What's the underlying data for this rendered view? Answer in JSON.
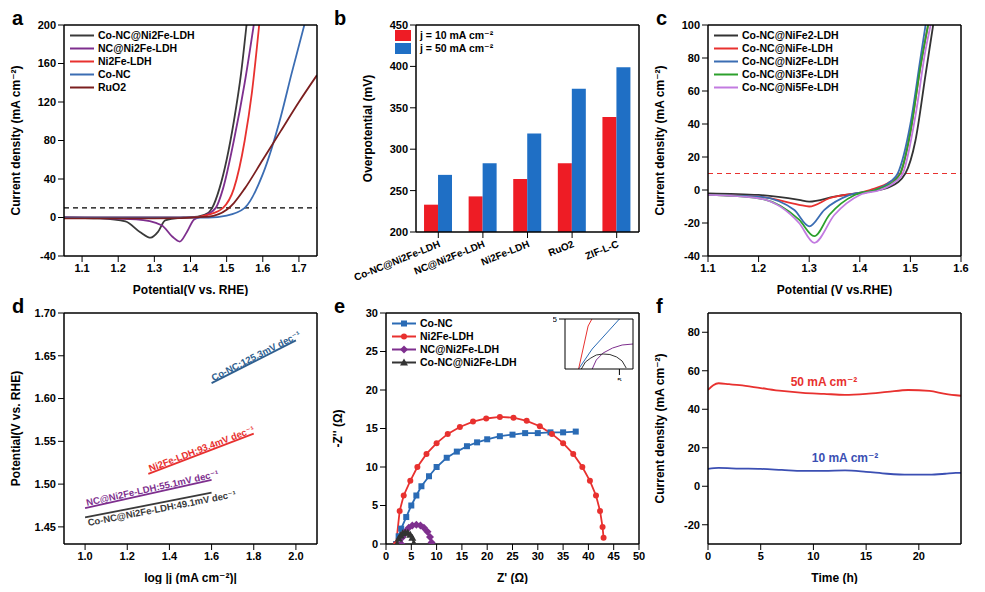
{
  "chart_data": [
    {
      "panel": "a",
      "type": "line",
      "x_label": "Potential(V vs. RHE)",
      "y_label": "Current density (mA cm⁻²)",
      "xlim": [
        1.05,
        1.75
      ],
      "xticks": [
        1.1,
        1.2,
        1.3,
        1.4,
        1.5,
        1.6,
        1.7
      ],
      "ylim": [
        -40,
        200
      ],
      "yticks": [
        -40,
        0,
        40,
        80,
        120,
        160,
        200
      ],
      "hline": 10,
      "legend": "upper left",
      "grid": false,
      "series": [
        {
          "name": "Co-NC@Ni2Fe-LDH",
          "color": "#3a3a3a",
          "x": [
            1.05,
            1.15,
            1.22,
            1.26,
            1.29,
            1.31,
            1.33,
            1.38,
            1.42,
            1.45,
            1.46,
            1.48,
            1.5,
            1.52,
            1.54,
            1.555
          ],
          "values": [
            0,
            -1,
            -4,
            -15,
            -21,
            -15,
            -3,
            0,
            1,
            5,
            10,
            30,
            60,
            100,
            150,
            200
          ]
        },
        {
          "name": "NC@Ni2Fe-LDH",
          "color": "#7e2f8e",
          "x": [
            1.05,
            1.25,
            1.32,
            1.35,
            1.37,
            1.39,
            1.41,
            1.44,
            1.47,
            1.49,
            1.52,
            1.55,
            1.575
          ],
          "values": [
            0,
            -2,
            -8,
            -20,
            -25,
            -15,
            -2,
            2,
            10,
            30,
            80,
            140,
            200
          ]
        },
        {
          "name": "Ni2Fe-LDH",
          "color": "#e8312f",
          "x": [
            1.05,
            1.3,
            1.4,
            1.45,
            1.49,
            1.52,
            1.55,
            1.57,
            1.59
          ],
          "values": [
            0,
            0,
            0,
            3,
            10,
            30,
            80,
            130,
            200
          ]
        },
        {
          "name": "Co-NC",
          "color": "#3b6db3",
          "x": [
            1.05,
            1.3,
            1.45,
            1.5,
            1.55,
            1.6,
            1.65,
            1.68,
            1.715
          ],
          "values": [
            0,
            0,
            0,
            2,
            10,
            45,
            105,
            150,
            200
          ]
        },
        {
          "name": "RuO2",
          "color": "#7b1f1f",
          "x": [
            1.05,
            1.3,
            1.45,
            1.5,
            1.52,
            1.55,
            1.6,
            1.65,
            1.7,
            1.75
          ],
          "values": [
            -1,
            -1,
            1,
            8,
            15,
            30,
            60,
            90,
            120,
            148
          ]
        }
      ]
    },
    {
      "panel": "b",
      "type": "bar",
      "y_label": "Overpotential (mV)",
      "categories": [
        "Co-NC@Ni2Fe-LDH",
        "NC@Ni2Fe-LDH",
        "Ni2Fe-LDH",
        "RuO2",
        "ZIF-L-C"
      ],
      "ylim": [
        200,
        450
      ],
      "yticks": [
        200,
        250,
        300,
        350,
        400,
        450
      ],
      "legend": "upper left",
      "grid": false,
      "series": [
        {
          "name": "j = 10 mA cm⁻²",
          "color": "#ee1c25",
          "values": [
            233,
            243,
            264,
            283,
            339
          ]
        },
        {
          "name": "j = 50 mA cm⁻²",
          "color": "#1f6fc5",
          "values": [
            269,
            283,
            319,
            373,
            399
          ]
        }
      ]
    },
    {
      "panel": "c",
      "type": "line",
      "x_label": "Potential (V vs.RHE)",
      "y_label": "Current density (mA cm⁻²)",
      "xlim": [
        1.1,
        1.6
      ],
      "xticks": [
        1.1,
        1.2,
        1.3,
        1.4,
        1.5,
        1.6
      ],
      "ylim": [
        -40,
        100
      ],
      "yticks": [
        -40,
        -20,
        0,
        20,
        40,
        60,
        80,
        100
      ],
      "hline": 10,
      "legend": "upper left",
      "grid": false,
      "series": [
        {
          "name": "Co-NC@NiFe2-LDH",
          "color": "#333333",
          "x": [
            1.1,
            1.2,
            1.28,
            1.3,
            1.35,
            1.42,
            1.46,
            1.49,
            1.51,
            1.53,
            1.545
          ],
          "values": [
            -2,
            -3,
            -6,
            -7,
            -4,
            -1,
            2,
            10,
            30,
            70,
            100
          ]
        },
        {
          "name": "Co-NC@NiFe-LDH",
          "color": "#e8312f",
          "x": [
            1.1,
            1.2,
            1.28,
            1.3,
            1.34,
            1.42,
            1.46,
            1.48,
            1.5,
            1.52,
            1.535
          ],
          "values": [
            -3,
            -4,
            -9,
            -10,
            -5,
            0,
            5,
            10,
            35,
            75,
            100
          ]
        },
        {
          "name": "Co-NC@Ni2Fe-LDH",
          "color": "#3b6db3",
          "x": [
            1.1,
            1.2,
            1.27,
            1.3,
            1.33,
            1.38,
            1.43,
            1.46,
            1.475,
            1.5,
            1.52,
            1.53
          ],
          "values": [
            -3,
            -4,
            -12,
            -22,
            -12,
            -3,
            0,
            5,
            10,
            40,
            80,
            100
          ]
        },
        {
          "name": "Co-NC@Ni3Fe-LDH",
          "color": "#2ca02c",
          "x": [
            1.1,
            1.2,
            1.28,
            1.31,
            1.34,
            1.39,
            1.43,
            1.47,
            1.48,
            1.5,
            1.52,
            1.535
          ],
          "values": [
            -3,
            -5,
            -18,
            -28,
            -15,
            -3,
            0,
            6,
            10,
            35,
            75,
            100
          ]
        },
        {
          "name": "Co-NC@Ni5Fe-LDH",
          "color": "#c27be0",
          "x": [
            1.1,
            1.2,
            1.28,
            1.31,
            1.35,
            1.4,
            1.44,
            1.47,
            1.485,
            1.51,
            1.53,
            1.54
          ],
          "values": [
            -3,
            -5,
            -20,
            -32,
            -15,
            -3,
            0,
            5,
            10,
            45,
            85,
            100
          ]
        }
      ]
    },
    {
      "panel": "d",
      "type": "line",
      "x_label": "log |j (mA cm⁻²)|",
      "y_label": "Potential(V vs. RHE)",
      "xlim": [
        0.9,
        2.1
      ],
      "xticks": [
        {
          "value": 1,
          "label": "1.0"
        },
        1.2,
        1.4,
        1.6,
        1.8,
        {
          "value": 2,
          "label": "2.0"
        }
      ],
      "ylim": [
        1.43,
        1.7
      ],
      "yticks": [
        1.45,
        {
          "value": 1.5,
          "label": "1.50"
        },
        1.55,
        {
          "value": 1.6,
          "label": "1.60"
        },
        1.65,
        {
          "value": 1.7,
          "label": "1.70"
        }
      ],
      "grid": false,
      "series": [
        {
          "name": "Co-NC:125.3mV dec⁻¹",
          "color": "#2f5f8f",
          "x": [
            1.6,
            2.0
          ],
          "values": [
            1.618,
            1.668
          ]
        },
        {
          "name": "Ni2Fe-LDH:93.4mV dec⁻¹",
          "color": "#e8312f",
          "x": [
            1.3,
            1.8
          ],
          "values": [
            1.512,
            1.559
          ]
        },
        {
          "name": "NC@Ni2Fe-LDH:55.1mV dec⁻¹",
          "color": "#7e2f8e",
          "x": [
            1.0,
            1.6
          ],
          "values": [
            1.472,
            1.505
          ]
        },
        {
          "name": "Co-NC@Ni2Fe-LDH:49.1mV dec⁻¹",
          "color": "#3a3a3a",
          "x": [
            1.0,
            1.6
          ],
          "values": [
            1.461,
            1.49
          ]
        }
      ]
    },
    {
      "panel": "e",
      "type": "line",
      "x_label": "Z' (Ω)",
      "y_label": "-Z'' (Ω)",
      "xlim": [
        0,
        50
      ],
      "xticks": [
        0,
        5,
        10,
        15,
        20,
        25,
        30,
        35,
        40,
        45,
        50
      ],
      "ylim": [
        0,
        30
      ],
      "yticks": [
        0,
        5,
        10,
        15,
        20,
        25,
        30
      ],
      "legend": "upper left",
      "grid": false,
      "inset": {
        "xlim": [
          1,
          6
        ],
        "ylim": [
          0,
          5
        ],
        "xticks": [
          5
        ],
        "yticks": [
          5
        ]
      },
      "series": [
        {
          "name": "Co-NC",
          "color": "#2a6bb5",
          "marker": "square",
          "x": [
            2,
            2.5,
            3,
            4,
            5,
            6,
            7,
            8.5,
            10,
            12,
            14,
            16,
            18,
            20,
            22.5,
            25,
            27.5,
            30,
            32.5,
            35,
            37.5
          ],
          "values": [
            0,
            1,
            2,
            3.5,
            5,
            6.3,
            7.5,
            8.8,
            10,
            11.2,
            12,
            12.7,
            13.2,
            13.6,
            14,
            14.2,
            14.4,
            14.4,
            14.5,
            14.5,
            14.6
          ]
        },
        {
          "name": "Ni2Fe-LDH",
          "color": "#e8312f",
          "marker": "circle",
          "x": [
            2,
            2.7,
            3.5,
            4.8,
            6.2,
            8,
            10,
            12.2,
            14.6,
            17.2,
            19.8,
            22.5,
            25.2,
            27.8,
            30.4,
            32.8,
            35,
            37,
            38.8,
            40.3,
            41.5,
            42.3,
            42.8,
            43
          ],
          "values": [
            0,
            4.3,
            6.3,
            8.2,
            10,
            11.7,
            13.1,
            14.3,
            15.2,
            15.9,
            16.3,
            16.5,
            16.4,
            16,
            15.3,
            14.3,
            13.1,
            11.7,
            10,
            8.2,
            6.3,
            4.3,
            2.2,
            0.8
          ]
        },
        {
          "name": "NC@Ni2Fe-LDH",
          "color": "#7e2f8e",
          "marker": "diamond",
          "x": [
            3,
            3.3,
            3.8,
            4.5,
            5.2,
            6,
            6.8,
            7.5,
            8.2,
            8.7,
            9
          ],
          "values": [
            0,
            0.9,
            1.6,
            2.1,
            2.4,
            2.5,
            2.4,
            2.1,
            1.6,
            0.9,
            0.2
          ]
        },
        {
          "name": "Co-NC@Ni2Fe-LDH",
          "color": "#333333",
          "marker": "triangle",
          "x": [
            2.2,
            2.5,
            2.9,
            3.3,
            3.8,
            4.3,
            4.8,
            5.2,
            5.5
          ],
          "values": [
            0,
            0.7,
            1.1,
            1.4,
            1.5,
            1.45,
            1.2,
            0.8,
            0.1
          ]
        }
      ]
    },
    {
      "panel": "f",
      "type": "line",
      "x_label": "Time (h)",
      "y_label": "Current density (mA cm⁻²)",
      "xlim": [
        0,
        24
      ],
      "xticks": [
        0,
        5,
        10,
        15,
        20
      ],
      "ylim": [
        -30,
        90
      ],
      "yticks": [
        -20,
        0,
        20,
        40,
        60,
        80
      ],
      "grid": false,
      "series": [
        {
          "name": "50 mA cm⁻²",
          "color": "#e8312f",
          "x": [
            0,
            0.5,
            1,
            2,
            3,
            5,
            7,
            9,
            11,
            13,
            15,
            17,
            19,
            21,
            22.5,
            24
          ],
          "values": [
            50,
            52.5,
            53.5,
            53,
            52.5,
            51,
            49.5,
            48.5,
            48,
            47.5,
            48,
            49,
            50,
            49.5,
            48,
            47
          ]
        },
        {
          "name": "10 mA cm⁻²",
          "color": "#3b4fb3",
          "x": [
            0,
            1,
            3,
            5,
            7,
            9,
            11,
            13,
            15,
            17,
            19,
            21,
            22.5,
            23.5,
            24
          ],
          "values": [
            9,
            9.5,
            9.2,
            9,
            8.5,
            8,
            8,
            8.2,
            7.5,
            6.5,
            6,
            6,
            6.5,
            7,
            7
          ]
        }
      ]
    }
  ]
}
